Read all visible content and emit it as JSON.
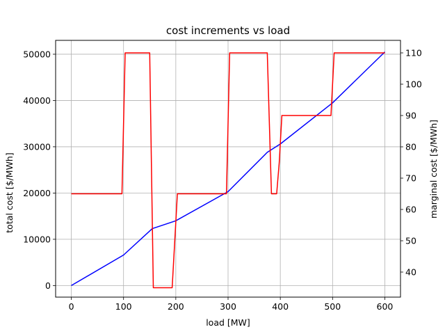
{
  "chart_data": {
    "type": "line",
    "title": "cost increments vs load",
    "xlabel": "load [MW]",
    "ylabel": "total cost [$/MWh]",
    "y2label": "marginal cost [$/MWh]",
    "xlim": [
      -30,
      630
    ],
    "ylim": [
      -2500,
      53000
    ],
    "y2lim": [
      32,
      114
    ],
    "x_ticks": [
      0,
      100,
      200,
      300,
      400,
      500,
      600
    ],
    "y_ticks": [
      0,
      10000,
      20000,
      30000,
      40000,
      50000
    ],
    "y2_ticks": [
      40,
      50,
      60,
      70,
      80,
      90,
      100,
      110
    ],
    "grid": true,
    "series": [
      {
        "axis": "left",
        "color": "#0000ff",
        "points": [
          [
            0,
            0
          ],
          [
            100,
            6600
          ],
          [
            155,
            12300
          ],
          [
            200,
            14000
          ],
          [
            300,
            20300
          ],
          [
            375,
            28800
          ],
          [
            400,
            30600
          ],
          [
            500,
            39500
          ],
          [
            600,
            50500
          ]
        ]
      },
      {
        "axis": "right",
        "color": "#ff0000",
        "points": [
          [
            0,
            65
          ],
          [
            97,
            65
          ],
          [
            103,
            110
          ],
          [
            150,
            110
          ],
          [
            157,
            35
          ],
          [
            193,
            35
          ],
          [
            203,
            65
          ],
          [
            297,
            65
          ],
          [
            303,
            110
          ],
          [
            375,
            110
          ],
          [
            383,
            65
          ],
          [
            393,
            65
          ],
          [
            398,
            75
          ],
          [
            403,
            90
          ],
          [
            497,
            90
          ],
          [
            503,
            110
          ],
          [
            600,
            110
          ]
        ]
      }
    ]
  }
}
